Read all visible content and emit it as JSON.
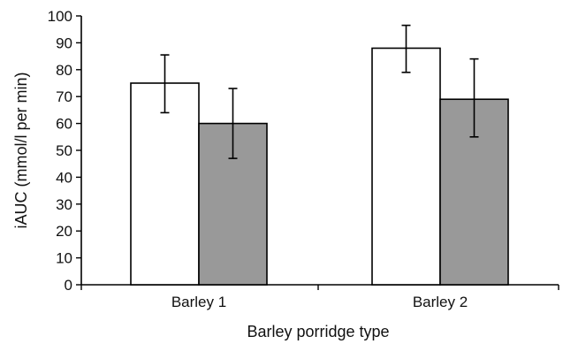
{
  "chart_data": {
    "type": "bar",
    "xlabel": "Barley porridge type",
    "ylabel": "iAUC (mmol/l per min)",
    "categories": [
      "Barley 1",
      "Barley 2"
    ],
    "ylim": [
      0,
      100
    ],
    "yticks": [
      0,
      10,
      20,
      30,
      40,
      50,
      60,
      70,
      80,
      90,
      100
    ],
    "grid": false,
    "legend": "none",
    "series": [
      {
        "values": [
          75,
          88
        ],
        "error_low": [
          64,
          79
        ],
        "error_high": [
          85.5,
          96.5
        ],
        "color": "#ffffff"
      },
      {
        "values": [
          60,
          69
        ],
        "error_low": [
          47,
          55
        ],
        "error_high": [
          73,
          84
        ],
        "color": "#999999"
      }
    ]
  }
}
